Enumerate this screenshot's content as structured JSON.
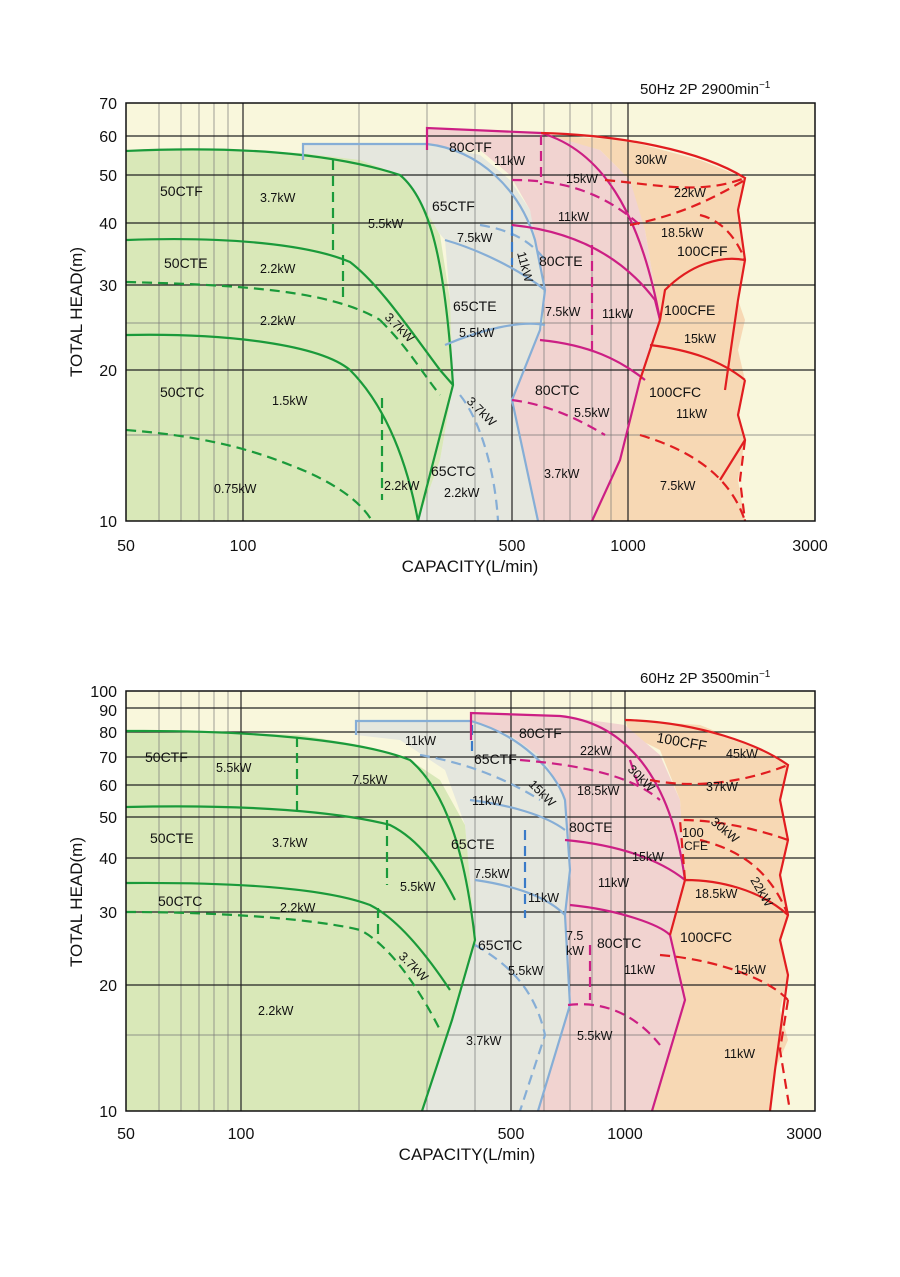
{
  "colors": {
    "plot_bg": "#f9f7dc",
    "grid": "#222222",
    "grid_minor": "#777777",
    "ctfill_50": "#d9e8b8",
    "ctfill_65": "#e5e7de",
    "ctfill_80": "#f1d3d0",
    "ctfill_100": "#f7d8b4",
    "line_50": "#1a9a3a",
    "line_65": "#86aed6",
    "line_80": "#cc1f84",
    "line_100": "#e11d20"
  },
  "chart_data": [
    {
      "type": "area",
      "title": "50Hz 2P 2900min⁻¹",
      "xlabel": "CAPACITY(L/min)",
      "ylabel": "TOTAL HEAD(m)",
      "xscale": "log",
      "yscale": "log",
      "xlim": [
        50,
        3000
      ],
      "ylim": [
        10,
        70
      ],
      "x_ticks": [
        50,
        100,
        500,
        1000,
        3000
      ],
      "y_ticks": [
        10,
        20,
        30,
        40,
        50,
        60,
        70
      ],
      "grid": true,
      "series": [
        {
          "name": "50CTF",
          "kw_labels": [
            "3.7kW",
            "5.5kW"
          ]
        },
        {
          "name": "50CTE",
          "kw_labels": [
            "2.2kW",
            "2.2kW",
            "3.7kW"
          ]
        },
        {
          "name": "50CTC",
          "kw_labels": [
            "1.5kW",
            "0.75kW",
            "2.2kW"
          ]
        },
        {
          "name": "65CTF",
          "kw_labels": [
            "7.5kW",
            "11kW"
          ]
        },
        {
          "name": "65CTE",
          "kw_labels": [
            "5.5kW",
            "3.7kW"
          ]
        },
        {
          "name": "65CTC",
          "kw_labels": [
            "2.2kW"
          ]
        },
        {
          "name": "80CTF",
          "kw_labels": [
            "11kW",
            "15kW",
            "11kW"
          ]
        },
        {
          "name": "80CTE",
          "kw_labels": [
            "7.5kW",
            "11kW"
          ]
        },
        {
          "name": "80CTC",
          "kw_labels": [
            "5.5kW",
            "3.7kW"
          ]
        },
        {
          "name": "100CFF",
          "kw_labels": [
            "30kW",
            "22kW",
            "18.5kW"
          ]
        },
        {
          "name": "100CFE",
          "kw_labels": [
            "15kW"
          ]
        },
        {
          "name": "100CFC",
          "kw_labels": [
            "11kW",
            "7.5kW"
          ]
        }
      ]
    },
    {
      "type": "area",
      "title": "60Hz 2P 3500min⁻¹",
      "xlabel": "CAPACITY(L/min)",
      "ylabel": "TOTAL HEAD(m)",
      "xscale": "log",
      "yscale": "log",
      "xlim": [
        50,
        3000
      ],
      "ylim": [
        10,
        100
      ],
      "x_ticks": [
        50,
        100,
        500,
        1000,
        3000
      ],
      "y_ticks": [
        10,
        20,
        30,
        40,
        50,
        60,
        70,
        80,
        90,
        100
      ],
      "grid": true,
      "series": [
        {
          "name": "50CTF",
          "kw_labels": [
            "5.5kW",
            "7.5kW"
          ]
        },
        {
          "name": "50CTE",
          "kw_labels": [
            "3.7kW",
            "5.5kW"
          ]
        },
        {
          "name": "50CTC",
          "kw_labels": [
            "2.2kW",
            "3.7kW",
            "2.2kW"
          ]
        },
        {
          "name": "65CTF",
          "kw_labels": [
            "11kW",
            "11kW",
            "15kW"
          ]
        },
        {
          "name": "65CTE",
          "kw_labels": [
            "7.5kW",
            "11kW"
          ]
        },
        {
          "name": "65CTC",
          "kw_labels": [
            "5.5kW",
            "3.7kW"
          ]
        },
        {
          "name": "80CTF",
          "kw_labels": [
            "22kW",
            "18.5kW",
            "30kW"
          ]
        },
        {
          "name": "80CTE",
          "kw_labels": [
            "15kW",
            "11kW"
          ]
        },
        {
          "name": "80CTC",
          "kw_labels": [
            "7.5",
            "kW",
            "11kW",
            "5.5kW"
          ]
        },
        {
          "name": "100CFF",
          "kw_labels": [
            "45kW",
            "37kW",
            "30kW"
          ]
        },
        {
          "name": "100 CFE",
          "kw_labels": [
            "18.5kW",
            "22kW"
          ]
        },
        {
          "name": "100CFC",
          "kw_labels": [
            "15kW",
            "11kW"
          ]
        }
      ]
    }
  ],
  "labels": {
    "top_title": "50Hz 2P 2900min",
    "top_title_sup": "−1",
    "bot_title": "60Hz 2P 3500min",
    "bot_title_sup": "−1",
    "xlabel": "CAPACITY(L/min)",
    "ylabel": "TOTAL HEAD(m)",
    "x_ticks": [
      "50",
      "100",
      "500",
      "1000",
      "3000"
    ],
    "top_y_ticks": [
      "10",
      "20",
      "30",
      "40",
      "50",
      "60",
      "70"
    ],
    "bot_y_ticks": [
      "10",
      "20",
      "30",
      "40",
      "50",
      "60",
      "70",
      "80",
      "90",
      "100"
    ]
  }
}
